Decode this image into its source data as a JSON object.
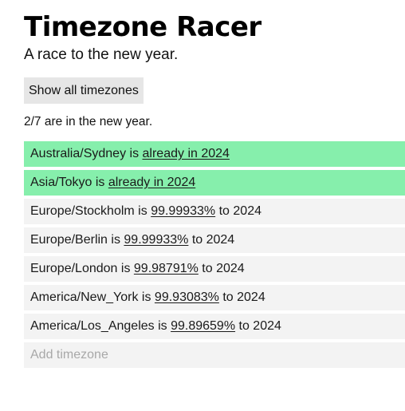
{
  "header": {
    "title": "Timezone Racer",
    "subtitle": "A race to the new year."
  },
  "show_all_button": "Show all timezones",
  "summary": "2/7 are in the new year.",
  "timezones": [
    {
      "zone": "Australia/Sydney",
      "connector": " is ",
      "status": "already in 2024",
      "suffix": "",
      "done": true
    },
    {
      "zone": "Asia/Tokyo",
      "connector": " is ",
      "status": "already in 2024",
      "suffix": "",
      "done": true
    },
    {
      "zone": "Europe/Stockholm",
      "connector": " is ",
      "status": "99.99933%",
      "suffix": " to 2024",
      "done": false
    },
    {
      "zone": "Europe/Berlin",
      "connector": " is ",
      "status": "99.99933%",
      "suffix": " to 2024",
      "done": false
    },
    {
      "zone": "Europe/London",
      "connector": " is ",
      "status": "99.98791%",
      "suffix": " to 2024",
      "done": false
    },
    {
      "zone": "America/New_York",
      "connector": " is ",
      "status": "99.93083%",
      "suffix": " to 2024",
      "done": false
    },
    {
      "zone": "America/Los_Angeles",
      "connector": " is ",
      "status": "99.89659%",
      "suffix": " to 2024",
      "done": false
    }
  ],
  "add_input": {
    "placeholder": "Add timezone",
    "value": ""
  },
  "colors": {
    "done_row": "#86efac",
    "pending_row": "#f3f3f3",
    "button_bg": "#e6e6e6"
  }
}
